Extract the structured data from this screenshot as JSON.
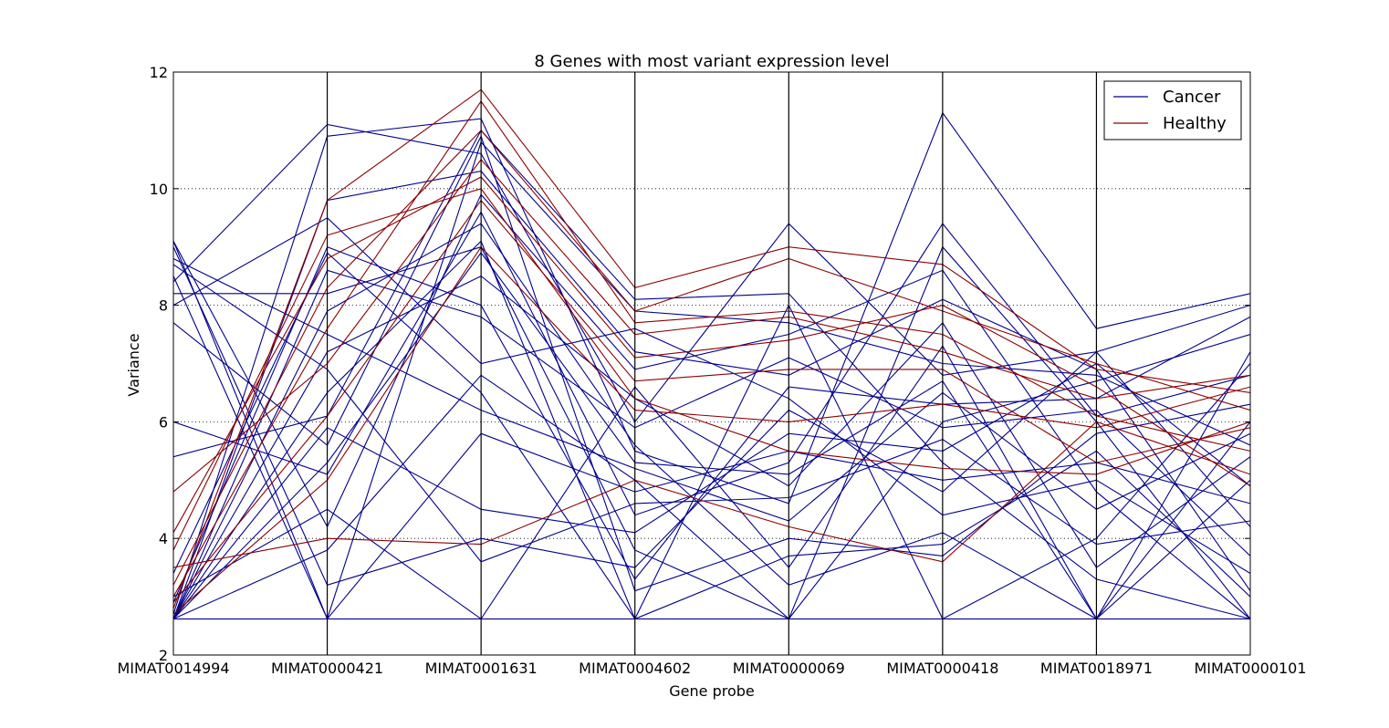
{
  "chart_data": {
    "type": "line",
    "subtype": "parallel-coordinates",
    "title": "8 Genes with most variant expression level",
    "xlabel": "Gene probe",
    "ylabel": "Variance",
    "ylim": [
      2,
      12
    ],
    "yticks": [
      2,
      4,
      6,
      8,
      10,
      12
    ],
    "grid": "y-dotted",
    "legend_position": "top-right",
    "categories": [
      "MIMAT0014994",
      "MIMAT0000421",
      "MIMAT0001631",
      "MIMAT0004602",
      "MIMAT0000069",
      "MIMAT0000418",
      "MIMAT0018971",
      "MIMAT0000101"
    ],
    "series": [
      {
        "name": "Cancer",
        "color": "#00008b",
        "lines": [
          [
            9.1,
            2.62,
            2.62,
            2.62,
            2.62,
            2.62,
            2.62,
            2.62
          ],
          [
            8.4,
            11.1,
            10.6,
            6.0,
            9.4,
            6.8,
            7.2,
            4.2
          ],
          [
            2.7,
            10.9,
            11.2,
            5.5,
            4.6,
            11.3,
            7.6,
            8.2
          ],
          [
            6.0,
            5.1,
            9.6,
            4.4,
            5.3,
            9.4,
            6.1,
            6.8
          ],
          [
            5.4,
            6.1,
            11.0,
            8.1,
            8.2,
            5.3,
            3.3,
            2.62
          ],
          [
            8.2,
            8.2,
            9.0,
            3.8,
            2.62,
            9.0,
            6.0,
            2.62
          ],
          [
            9.0,
            3.2,
            4.0,
            3.5,
            6.2,
            4.8,
            7.2,
            8.0
          ],
          [
            8.8,
            7.5,
            6.2,
            5.2,
            4.3,
            6.5,
            4.5,
            5.8
          ],
          [
            2.62,
            9.8,
            10.3,
            7.2,
            6.8,
            8.1,
            6.9,
            3.1
          ],
          [
            2.62,
            6.5,
            9.1,
            2.62,
            8.0,
            2.62,
            4.0,
            7.0
          ],
          [
            3.0,
            4.5,
            2.62,
            6.6,
            3.5,
            7.3,
            2.62,
            5.0
          ],
          [
            8.5,
            2.62,
            5.8,
            4.8,
            5.5,
            5.0,
            5.3,
            4.6
          ],
          [
            2.62,
            8.6,
            7.8,
            5.9,
            7.1,
            5.9,
            6.2,
            3.7
          ],
          [
            7.7,
            5.6,
            10.9,
            3.1,
            4.0,
            3.7,
            5.8,
            6.3
          ],
          [
            2.62,
            7.2,
            8.5,
            6.4,
            4.9,
            7.7,
            3.5,
            5.4
          ],
          [
            2.62,
            3.8,
            6.8,
            5.0,
            2.62,
            6.0,
            6.7,
            7.5
          ],
          [
            8.0,
            9.5,
            7.0,
            7.6,
            6.4,
            4.4,
            5.0,
            3.4
          ],
          [
            2.62,
            5.9,
            4.5,
            4.1,
            5.8,
            5.5,
            7.0,
            4.9
          ],
          [
            9.1,
            4.2,
            9.9,
            6.9,
            7.5,
            8.6,
            4.8,
            2.62
          ],
          [
            2.62,
            7.9,
            9.4,
            5.6,
            3.2,
            4.1,
            2.62,
            6.0
          ],
          [
            2.9,
            9.0,
            8.0,
            3.3,
            6.6,
            6.3,
            6.4,
            7.8
          ],
          [
            8.7,
            6.9,
            3.6,
            4.6,
            4.7,
            5.7,
            3.9,
            4.3
          ],
          [
            2.62,
            2.62,
            10.8,
            7.9,
            7.7,
            7.0,
            6.8,
            5.6
          ],
          [
            3.4,
            8.9,
            6.5,
            2.62,
            3.7,
            3.9,
            5.5,
            3.0
          ],
          [
            2.62,
            5.3,
            8.9,
            5.3,
            5.1,
            6.7,
            2.62,
            7.2
          ]
        ]
      },
      {
        "name": "Healthy",
        "color": "#8b0000",
        "lines": [
          [
            2.8,
            9.8,
            11.7,
            8.3,
            9.0,
            8.7,
            6.9,
            6.5
          ],
          [
            4.8,
            7.0,
            10.5,
            7.5,
            7.8,
            7.2,
            6.4,
            6.8
          ],
          [
            3.2,
            8.3,
            11.0,
            7.9,
            8.8,
            7.9,
            7.0,
            6.2
          ],
          [
            2.9,
            6.1,
            9.8,
            6.7,
            6.9,
            6.9,
            5.3,
            5.9
          ],
          [
            3.5,
            4.0,
            3.9,
            5.0,
            4.2,
            3.6,
            6.0,
            5.1
          ],
          [
            4.1,
            8.8,
            10.2,
            7.1,
            7.4,
            8.0,
            6.6,
            4.9
          ],
          [
            2.7,
            5.0,
            9.0,
            6.2,
            6.0,
            6.3,
            5.9,
            6.6
          ],
          [
            3.0,
            7.6,
            11.5,
            7.7,
            7.9,
            7.5,
            6.1,
            5.5
          ],
          [
            3.8,
            9.2,
            10.0,
            6.4,
            5.5,
            5.2,
            5.1,
            6.0
          ]
        ]
      }
    ]
  }
}
